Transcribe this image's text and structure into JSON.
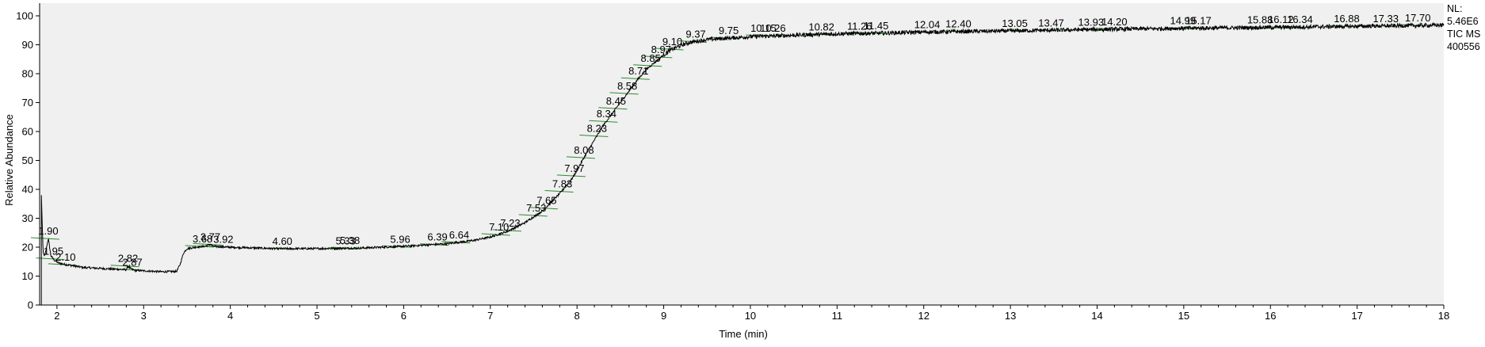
{
  "info": {
    "nl_label": "NL:",
    "nl_value": "5.46E6",
    "trace": "TIC  MS",
    "file": "400556"
  },
  "chart_data": {
    "type": "line",
    "xlabel": "Time (min)",
    "ylabel": "Relative Abundance",
    "xlim": [
      1.8,
      18.0
    ],
    "ylim": [
      0,
      100
    ],
    "x_ticks": [
      2,
      3,
      4,
      5,
      6,
      7,
      8,
      9,
      10,
      11,
      12,
      13,
      14,
      15,
      16,
      17,
      18
    ],
    "y_ticks": [
      0,
      10,
      20,
      30,
      40,
      50,
      60,
      70,
      80,
      90,
      100
    ],
    "background": "#f0f0f0",
    "trace_color": "#000000",
    "baseline_color": "#2e8b2e",
    "series": [
      {
        "x": [
          1.82,
          1.84,
          1.86,
          1.88,
          1.9,
          1.93,
          1.97,
          2.02,
          2.1,
          2.3,
          2.6,
          2.8,
          2.82,
          2.85,
          2.9,
          3.2,
          3.38,
          3.42,
          3.46,
          3.5,
          3.6,
          3.7,
          3.77,
          3.8,
          4.0,
          4.5,
          5.0,
          5.5,
          6.0,
          6.5,
          6.8,
          7.0,
          7.2,
          7.4,
          7.6,
          7.8,
          7.95,
          8.1,
          8.2,
          8.3,
          8.4,
          8.5,
          8.6,
          8.7,
          8.8,
          8.9,
          9.0,
          9.1,
          9.2,
          9.3,
          9.5,
          9.75,
          10.0,
          10.5,
          11.0,
          11.5,
          12.0,
          13.0,
          14.0,
          15.0,
          16.0,
          17.0,
          18.0
        ],
        "y": [
          38,
          18,
          17,
          20,
          23,
          17,
          15.5,
          14.5,
          14,
          13,
          12.5,
          12.2,
          13.5,
          12.5,
          12,
          11.5,
          11.6,
          14,
          18,
          19.5,
          20,
          20.3,
          21,
          20.3,
          20,
          19.5,
          19.5,
          19.7,
          20.3,
          21.2,
          22.3,
          23.5,
          25.5,
          28.5,
          32.5,
          38.5,
          44,
          52,
          57,
          62,
          66,
          70,
          74,
          78,
          81.5,
          84,
          86.5,
          88.5,
          89.8,
          90.8,
          91.8,
          92.3,
          92.8,
          93.3,
          93.8,
          94,
          94.4,
          94.8,
          95.3,
          95.7,
          96,
          96.4,
          96.8
        ]
      }
    ],
    "peak_labels": [
      {
        "t": "1.90",
        "x": 1.9,
        "y": 23
      },
      {
        "t": "1.95",
        "x": 1.96,
        "y": 16
      },
      {
        "t": "2.10",
        "x": 2.1,
        "y": 14
      },
      {
        "t": "2.82",
        "x": 2.82,
        "y": 13.5
      },
      {
        "t": "2.87",
        "x": 2.87,
        "y": 12.2
      },
      {
        "t": "3.68",
        "x": 3.68,
        "y": 20.3
      },
      {
        "t": "3.77",
        "x": 3.77,
        "y": 21
      },
      {
        "t": "3.92",
        "x": 3.92,
        "y": 20.1
      },
      {
        "t": "4.60",
        "x": 4.6,
        "y": 19.5
      },
      {
        "t": "5.33",
        "x": 5.33,
        "y": 19.6
      },
      {
        "t": "5.38",
        "x": 5.38,
        "y": 19.7
      },
      {
        "t": "5.96",
        "x": 5.96,
        "y": 20.2
      },
      {
        "t": "6.39",
        "x": 6.39,
        "y": 20.9
      },
      {
        "t": "6.64",
        "x": 6.64,
        "y": 21.7
      },
      {
        "t": "7.10",
        "x": 7.1,
        "y": 24.4
      },
      {
        "t": "7.23",
        "x": 7.23,
        "y": 25.8
      },
      {
        "t": "7.53",
        "x": 7.53,
        "y": 31
      },
      {
        "t": "7.65",
        "x": 7.65,
        "y": 33.5
      },
      {
        "t": "7.83",
        "x": 7.83,
        "y": 39.3
      },
      {
        "t": "7.97",
        "x": 7.97,
        "y": 44.7
      },
      {
        "t": "8.08",
        "x": 8.08,
        "y": 51
      },
      {
        "t": "8.23",
        "x": 8.23,
        "y": 58.5
      },
      {
        "t": "8.34",
        "x": 8.34,
        "y": 63.5
      },
      {
        "t": "8.45",
        "x": 8.45,
        "y": 68
      },
      {
        "t": "8.58",
        "x": 8.58,
        "y": 73.2
      },
      {
        "t": "8.71",
        "x": 8.71,
        "y": 78.3
      },
      {
        "t": "8.85",
        "x": 8.85,
        "y": 82.8
      },
      {
        "t": "8.97",
        "x": 8.97,
        "y": 85.8
      },
      {
        "t": "9.10",
        "x": 9.1,
        "y": 88.5
      },
      {
        "t": "9.37",
        "x": 9.37,
        "y": 91.1
      },
      {
        "t": "9.75",
        "x": 9.75,
        "y": 92.3
      },
      {
        "t": "10.15",
        "x": 10.15,
        "y": 93.1
      },
      {
        "t": "10.26",
        "x": 10.26,
        "y": 93.2
      },
      {
        "t": "10.82",
        "x": 10.82,
        "y": 93.6
      },
      {
        "t": "11.26",
        "x": 11.26,
        "y": 93.9
      },
      {
        "t": "11.45",
        "x": 11.45,
        "y": 94
      },
      {
        "t": "12.04",
        "x": 12.04,
        "y": 94.4
      },
      {
        "t": "12.40",
        "x": 12.4,
        "y": 94.6
      },
      {
        "t": "13.05",
        "x": 13.05,
        "y": 94.8
      },
      {
        "t": "13.47",
        "x": 13.47,
        "y": 95
      },
      {
        "t": "13.93",
        "x": 13.93,
        "y": 95.2
      },
      {
        "t": "14.20",
        "x": 14.2,
        "y": 95.4
      },
      {
        "t": "14.99",
        "x": 14.99,
        "y": 95.7
      },
      {
        "t": "15.17",
        "x": 15.17,
        "y": 95.8
      },
      {
        "t": "15.88",
        "x": 15.88,
        "y": 96
      },
      {
        "t": "16.12",
        "x": 16.12,
        "y": 96.1
      },
      {
        "t": "16.34",
        "x": 16.34,
        "y": 96.2
      },
      {
        "t": "16.88",
        "x": 16.88,
        "y": 96.4
      },
      {
        "t": "17.33",
        "x": 17.33,
        "y": 96.5
      },
      {
        "t": "17.70",
        "x": 17.7,
        "y": 96.7
      }
    ]
  }
}
